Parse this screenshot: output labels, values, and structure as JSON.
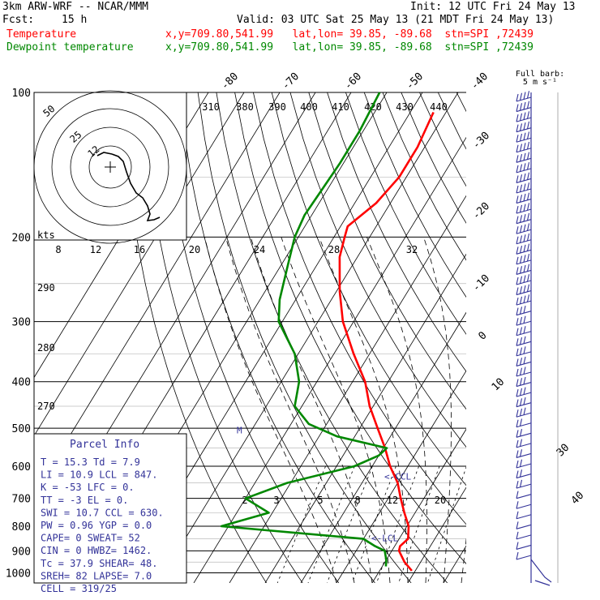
{
  "header": {
    "model": "3km ARW-WRF -- NCAR/MMM",
    "init": "Init: 12 UTC Fri 24 May 13",
    "fcst_label": "Fcst:",
    "fcst_value": "15 h",
    "valid": "Valid: 03 UTC Sat 25 May 13 (21 MDT Fri 24 May 13)",
    "temp_label": "Temperature",
    "temp_info": "x,y=709.80,541.99   lat,lon= 39.85, -89.68  stn=SPI ,72439",
    "dew_label": "Dewpoint temperature",
    "dew_info": "x,y=709.80,541.99   lat,lon= 39.85, -89.68  stn=SPI ,72439"
  },
  "colors": {
    "temperature": "#ff0000",
    "dewpoint": "#008800",
    "barbs": "#333399",
    "hodograph": "#000000",
    "grid": "#000000",
    "isotherm": "#000000",
    "mixing_ratio": "#000000",
    "background": "#ffffff"
  },
  "chart_data": {
    "type": "line",
    "title": "",
    "xlabel": "",
    "ylabel": "",
    "y_scale": "log",
    "y_reversed": true,
    "grid": true,
    "pressure_levels": [
      100,
      200,
      300,
      400,
      500,
      600,
      700,
      800,
      900,
      1000
    ],
    "pressure_tick_labels": [
      "100",
      "200",
      "300",
      "400",
      "500",
      "600",
      "700",
      "800",
      "900",
      "1000"
    ],
    "isotherm_labels": [
      "-80",
      "-70",
      "-60",
      "-50",
      "-40",
      "-30",
      "-20",
      "-10",
      "0",
      "10",
      "30",
      "40"
    ],
    "dry_adiabat_labels": [
      "290",
      "280",
      "270"
    ],
    "theta_e_labels": [
      "310",
      "380",
      "390",
      "400",
      "410",
      "420",
      "430",
      "440"
    ],
    "mixing_ratio_labels": [
      "2",
      "3",
      "5",
      "8",
      "12",
      "20"
    ],
    "series": [
      {
        "name": "Temperature",
        "points": [
          {
            "p": 110,
            "t": -53.5
          },
          {
            "p": 130,
            "t": -52
          },
          {
            "p": 150,
            "t": -52
          },
          {
            "p": 170,
            "t": -54
          },
          {
            "p": 190,
            "t": -58
          },
          {
            "p": 200,
            "t": -57
          },
          {
            "p": 220,
            "t": -55
          },
          {
            "p": 260,
            "t": -49
          },
          {
            "p": 300,
            "t": -43
          },
          {
            "p": 350,
            "t": -34.5
          },
          {
            "p": 400,
            "t": -26.5
          },
          {
            "p": 450,
            "t": -21
          },
          {
            "p": 500,
            "t": -15
          },
          {
            "p": 550,
            "t": -9.5
          },
          {
            "p": 600,
            "t": -5
          },
          {
            "p": 650,
            "t": 0
          },
          {
            "p": 700,
            "t": 3.5
          },
          {
            "p": 750,
            "t": 7
          },
          {
            "p": 800,
            "t": 10.5
          },
          {
            "p": 850,
            "t": 12.5
          },
          {
            "p": 880,
            "t": 11.5
          },
          {
            "p": 900,
            "t": 12
          },
          {
            "p": 950,
            "t": 15.5
          },
          {
            "p": 990,
            "t": 19
          }
        ]
      },
      {
        "name": "Dewpoint temperature",
        "points": [
          {
            "p": 100,
            "t": -72
          },
          {
            "p": 120,
            "t": -71
          },
          {
            "p": 140,
            "t": -71
          },
          {
            "p": 160,
            "t": -71.5
          },
          {
            "p": 180,
            "t": -72
          },
          {
            "p": 200,
            "t": -71
          },
          {
            "p": 230,
            "t": -68
          },
          {
            "p": 270,
            "t": -64.5
          },
          {
            "p": 300,
            "t": -61
          },
          {
            "p": 350,
            "t": -51
          },
          {
            "p": 400,
            "t": -45
          },
          {
            "p": 450,
            "t": -42
          },
          {
            "p": 490,
            "t": -35
          },
          {
            "p": 520,
            "t": -25
          },
          {
            "p": 550,
            "t": -9
          },
          {
            "p": 570,
            "t": -10
          },
          {
            "p": 600,
            "t": -15
          },
          {
            "p": 650,
            "t": -31
          },
          {
            "p": 700,
            "t": -40
          },
          {
            "p": 750,
            "t": -31
          },
          {
            "p": 800,
            "t": -42
          },
          {
            "p": 850,
            "t": 0
          },
          {
            "p": 880,
            "t": 4.5
          },
          {
            "p": 900,
            "t": 8
          },
          {
            "p": 940,
            "t": 10
          },
          {
            "p": 970,
            "t": 11
          }
        ]
      }
    ],
    "markers": [
      {
        "label": "M",
        "p": 505
      },
      {
        "label": "<-CCL",
        "p": 630
      },
      {
        "label": "<-LCL",
        "p": 847
      }
    ],
    "hodograph": {
      "units": "kts",
      "ring_labels": [
        "50",
        "25",
        "12"
      ],
      "speed_tick_labels": [
        "8",
        "12",
        "16",
        "20",
        "24",
        "28",
        "32"
      ]
    },
    "wind_barbs": {
      "legend_title": "Full barb:",
      "legend_value": "5 m s⁻¹"
    }
  },
  "parcel_info": {
    "title": "Parcel Info",
    "rows": [
      "T   =   15.3 Td =   7.9",
      "LI  =   10.9 LCL =  847.",
      "K   =    -53 LFC =    0.",
      "TT  =     -3 EL  =    0.",
      "SWI =   10.7 CCL =  630.",
      "PW  =   0.96 YGP =   0.0",
      "CAPE=      0 SWEAT=   52",
      "CIN =      0 HWBZ= 1462.",
      "Tc  =   37.9 SHEAR=   48.",
      "SREH=     82 LAPSE=  7.0",
      "CELL = 319/25"
    ]
  }
}
